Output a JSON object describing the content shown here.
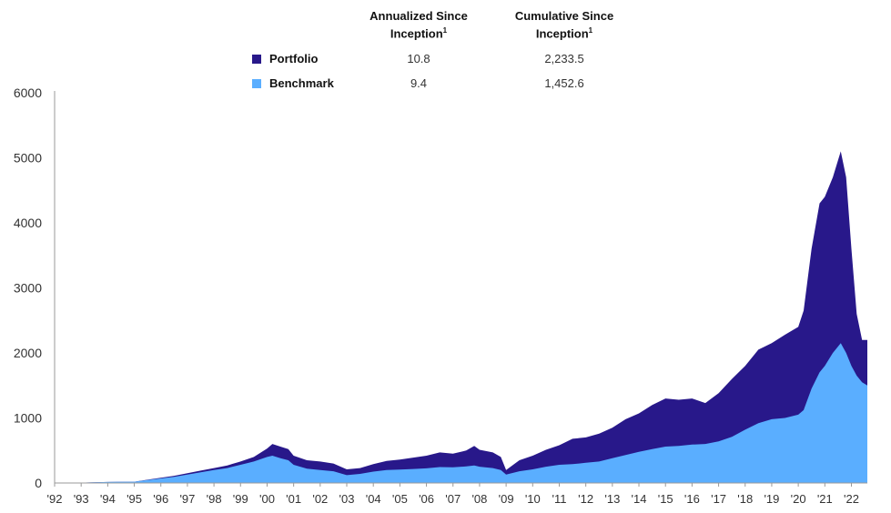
{
  "legend": {
    "col1_header": "Annualized Since",
    "col1_header_line2": "Inception",
    "col2_header": "Cumulative Since",
    "col2_header_line2": "Inception",
    "footnote_marker": "1",
    "rows": [
      {
        "name": "Portfolio",
        "annualized": "10.8",
        "cumulative": "2,233.5",
        "color": "#28188a"
      },
      {
        "name": "Benchmark",
        "annualized": "9.4",
        "cumulative": "1,452.6",
        "color": "#5aaeff"
      }
    ]
  },
  "chart_data": {
    "type": "area",
    "title": "",
    "xlabel": "",
    "ylabel": "",
    "ylim": [
      0,
      6000
    ],
    "yticks": [
      0,
      1000,
      2000,
      3000,
      4000,
      5000,
      6000
    ],
    "xticks": [
      "'92",
      "'93",
      "'94",
      "'95",
      "'96",
      "'97",
      "'98",
      "'99",
      "'00",
      "'01",
      "'02",
      "'03",
      "'04",
      "'05",
      "'06",
      "'07",
      "'08",
      "'09",
      "'10",
      "'11",
      "'12",
      "'13",
      "'14",
      "'15",
      "'16",
      "'17",
      "'18",
      "'19",
      "'20",
      "'21",
      "'22"
    ],
    "x_start_year": 1992,
    "grid": false,
    "series": [
      {
        "name": "Portfolio",
        "color": "#28188a",
        "x": [
          1992.0,
          1993.0,
          1994.0,
          1995.0,
          1995.5,
          1996.0,
          1996.5,
          1997.0,
          1997.5,
          1998.0,
          1998.5,
          1999.0,
          1999.5,
          2000.0,
          2000.2,
          2000.5,
          2000.8,
          2001.0,
          2001.5,
          2002.0,
          2002.5,
          2003.0,
          2003.5,
          2004.0,
          2004.5,
          2005.0,
          2005.5,
          2006.0,
          2006.5,
          2007.0,
          2007.5,
          2007.8,
          2008.0,
          2008.5,
          2008.8,
          2009.0,
          2009.5,
          2010.0,
          2010.5,
          2011.0,
          2011.5,
          2012.0,
          2012.5,
          2013.0,
          2013.5,
          2014.0,
          2014.5,
          2015.0,
          2015.5,
          2016.0,
          2016.5,
          2017.0,
          2017.5,
          2018.0,
          2018.5,
          2019.0,
          2019.5,
          2020.0,
          2020.2,
          2020.5,
          2020.8,
          2021.0,
          2021.3,
          2021.6,
          2021.8,
          2022.0,
          2022.2,
          2022.4,
          2022.6
        ],
        "values": [
          0,
          5,
          15,
          20,
          50,
          80,
          110,
          150,
          190,
          230,
          270,
          330,
          400,
          530,
          600,
          560,
          520,
          420,
          350,
          330,
          300,
          210,
          230,
          290,
          340,
          360,
          390,
          420,
          470,
          450,
          500,
          570,
          510,
          470,
          400,
          200,
          350,
          420,
          510,
          580,
          680,
          700,
          760,
          850,
          980,
          1070,
          1200,
          1300,
          1280,
          1300,
          1230,
          1380,
          1600,
          1800,
          2050,
          2150,
          2280,
          2400,
          2650,
          3600,
          4300,
          4400,
          4700,
          5100,
          4700,
          3600,
          2600,
          2200,
          2200
        ]
      },
      {
        "name": "Benchmark",
        "color": "#5aaeff",
        "x": [
          1992.0,
          1993.0,
          1994.0,
          1995.0,
          1995.5,
          1996.0,
          1996.5,
          1997.0,
          1997.5,
          1998.0,
          1998.5,
          1999.0,
          1999.5,
          2000.0,
          2000.2,
          2000.5,
          2000.8,
          2001.0,
          2001.5,
          2002.0,
          2002.5,
          2003.0,
          2003.5,
          2004.0,
          2004.5,
          2005.0,
          2005.5,
          2006.0,
          2006.5,
          2007.0,
          2007.5,
          2007.8,
          2008.0,
          2008.5,
          2008.8,
          2009.0,
          2009.5,
          2010.0,
          2010.5,
          2011.0,
          2011.5,
          2012.0,
          2012.5,
          2013.0,
          2013.5,
          2014.0,
          2014.5,
          2015.0,
          2015.5,
          2016.0,
          2016.5,
          2017.0,
          2017.5,
          2018.0,
          2018.5,
          2019.0,
          2019.5,
          2020.0,
          2020.2,
          2020.5,
          2020.8,
          2021.0,
          2021.3,
          2021.6,
          2021.8,
          2022.0,
          2022.2,
          2022.4,
          2022.6
        ],
        "values": [
          0,
          5,
          15,
          20,
          45,
          70,
          95,
          130,
          165,
          200,
          230,
          280,
          330,
          400,
          420,
          380,
          350,
          280,
          220,
          200,
          180,
          120,
          140,
          175,
          200,
          205,
          215,
          225,
          245,
          240,
          255,
          270,
          250,
          230,
          200,
          130,
          180,
          210,
          250,
          280,
          290,
          310,
          330,
          380,
          430,
          480,
          520,
          560,
          570,
          590,
          600,
          640,
          710,
          820,
          920,
          980,
          1000,
          1050,
          1120,
          1450,
          1700,
          1800,
          2000,
          2150,
          2000,
          1800,
          1650,
          1550,
          1500
        ]
      }
    ]
  }
}
